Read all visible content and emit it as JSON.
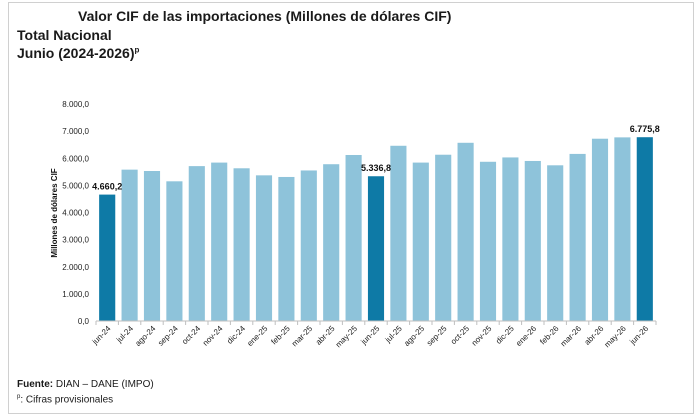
{
  "header": {
    "title": "Valor CIF de las importaciones (Millones de dólares CIF)",
    "subtitle": "Total Nacional",
    "period": "Junio (2024-2026)",
    "period_mark": "p"
  },
  "footer": {
    "source_label": "Fuente:",
    "source_text": " DIAN – DANE (IMPO)",
    "note_mark": "p",
    "note_text": ": Cifras provisionales"
  },
  "chart_data": {
    "type": "bar",
    "ylabel": "Millones de dólares CIF",
    "ylim": [
      0,
      8000
    ],
    "yticks": [
      "0,0",
      "1.000,0",
      "2.000,0",
      "3.000,0",
      "4.000,0",
      "5.000,0",
      "6.000,0",
      "7.000,0",
      "8.000,0"
    ],
    "categories": [
      "jun-24",
      "jul-24",
      "ago-24",
      "sep-24",
      "oct-24",
      "nov-24",
      "dic-24",
      "ene-25",
      "feb-25",
      "mar-25",
      "abr-25",
      "may-25",
      "jun-25",
      "jul-25",
      "ago-25",
      "sep-25",
      "oct-25",
      "nov-25",
      "dic-25",
      "ene-26",
      "feb-26",
      "mar-26",
      "abr-26",
      "may-26",
      "jun-26"
    ],
    "values": [
      4660.2,
      5580,
      5530,
      5150,
      5710,
      5840,
      5630,
      5370,
      5310,
      5550,
      5780,
      6120,
      5336.8,
      6460,
      5840,
      6130,
      6570,
      5870,
      6030,
      5900,
      5740,
      6160,
      6720,
      6770,
      6775.8
    ],
    "highlight": [
      0,
      12,
      24
    ],
    "data_labels": {
      "0": "4.660,2",
      "12": "5.336,8",
      "24": "6.775,8"
    },
    "colors": {
      "regular": "#8ec3da",
      "highlight": "#0e7aa6",
      "axis": "#bfbfbf"
    },
    "grid": false,
    "legend": "none"
  }
}
